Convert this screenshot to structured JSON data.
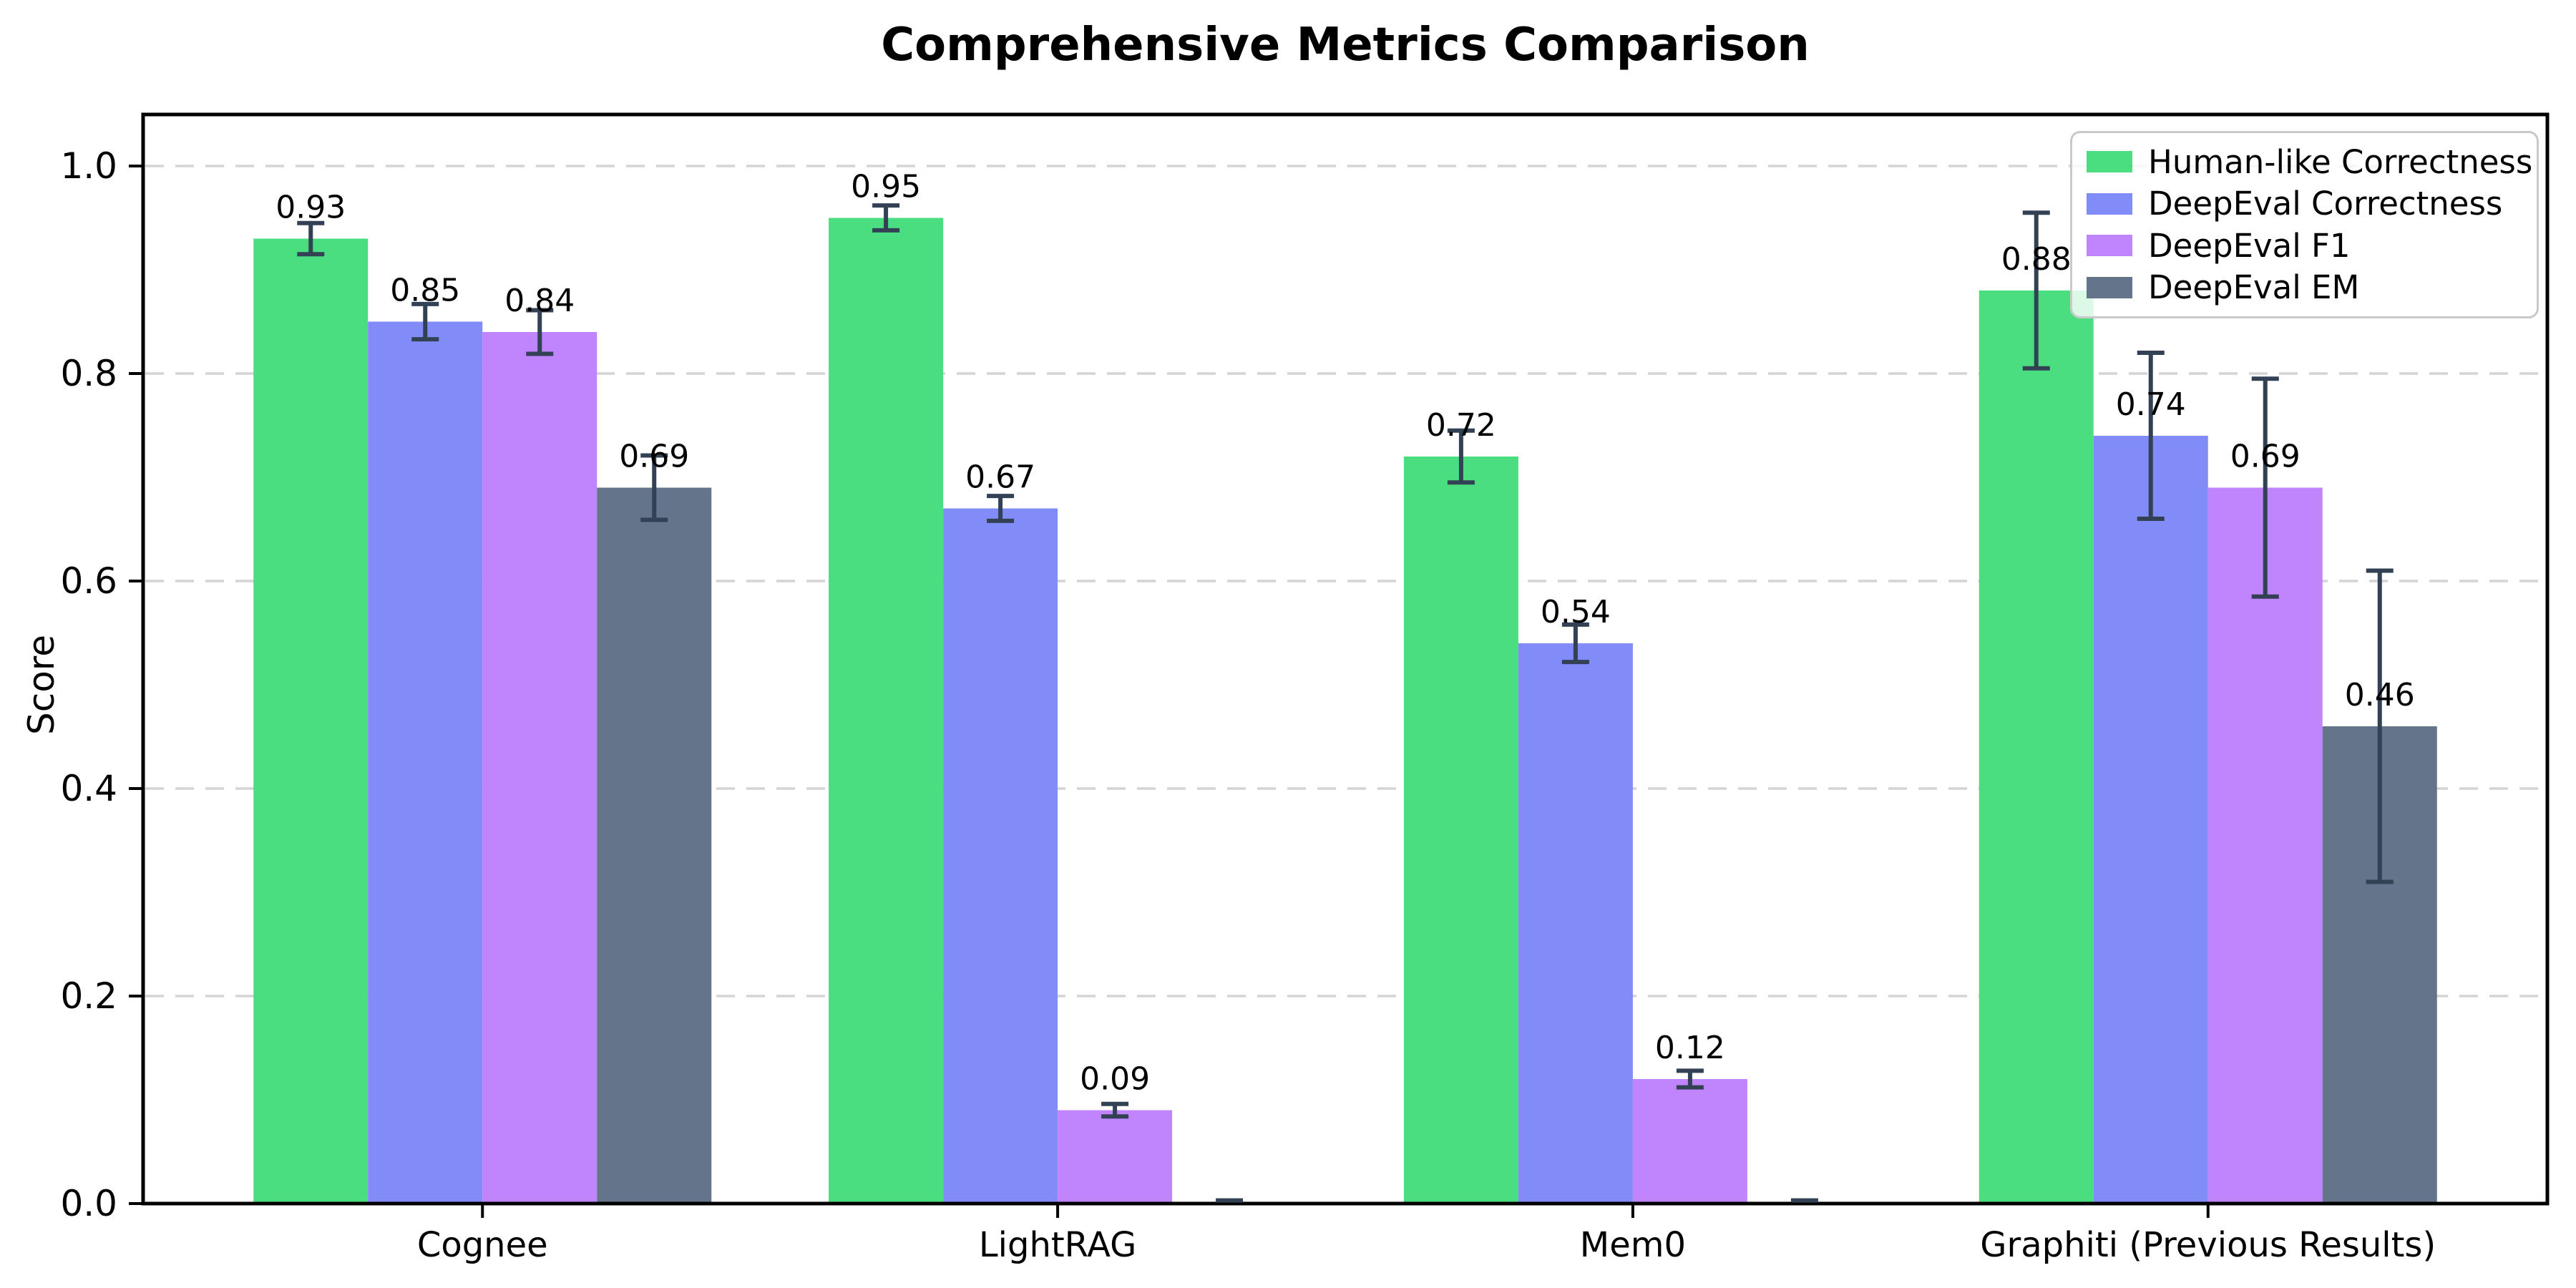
{
  "chart_data": {
    "type": "bar",
    "title": "Comprehensive Metrics Comparison",
    "ylabel": "Score",
    "xlabel": "",
    "categories": [
      "Cognee",
      "LightRAG",
      "Mem0",
      "Graphiti (Previous Results)"
    ],
    "series": [
      {
        "name": "Human-like Correctness",
        "color": "#4ade80",
        "values": [
          0.93,
          0.95,
          0.72,
          0.88
        ],
        "errors": [
          0.015,
          0.012,
          0.025,
          0.075
        ],
        "bar_labels": [
          "0.93",
          "0.95",
          "0.72",
          "0.88"
        ]
      },
      {
        "name": "DeepEval Correctness",
        "color": "#818cf8",
        "values": [
          0.85,
          0.67,
          0.54,
          0.74
        ],
        "errors": [
          0.017,
          0.012,
          0.018,
          0.08
        ],
        "bar_labels": [
          "0.85",
          "0.67",
          "0.54",
          "0.74"
        ]
      },
      {
        "name": "DeepEval F1",
        "color": "#c084fc",
        "values": [
          0.84,
          0.09,
          0.12,
          0.69
        ],
        "errors": [
          0.021,
          0.006,
          0.008,
          0.105
        ],
        "bar_labels": [
          "0.84",
          "0.09",
          "0.12",
          "0.69"
        ]
      },
      {
        "name": "DeepEval EM",
        "color": "#64748b",
        "values": [
          0.69,
          0.0,
          0.0,
          0.46
        ],
        "errors": [
          0.031,
          0.003,
          0.003,
          0.15
        ],
        "bar_labels": [
          "0.69",
          "",
          "",
          "0.46"
        ]
      }
    ],
    "ylim": [
      0.0,
      1.05
    ],
    "yticks": [
      "0.0",
      "0.2",
      "0.4",
      "0.6",
      "0.8",
      "1.0"
    ],
    "grid": {
      "axis": "y",
      "style": "dashed",
      "color": "#d4d4d4"
    },
    "legend_position": "upper right",
    "error_bar_color": "#334155",
    "axis_color": "#000000"
  }
}
